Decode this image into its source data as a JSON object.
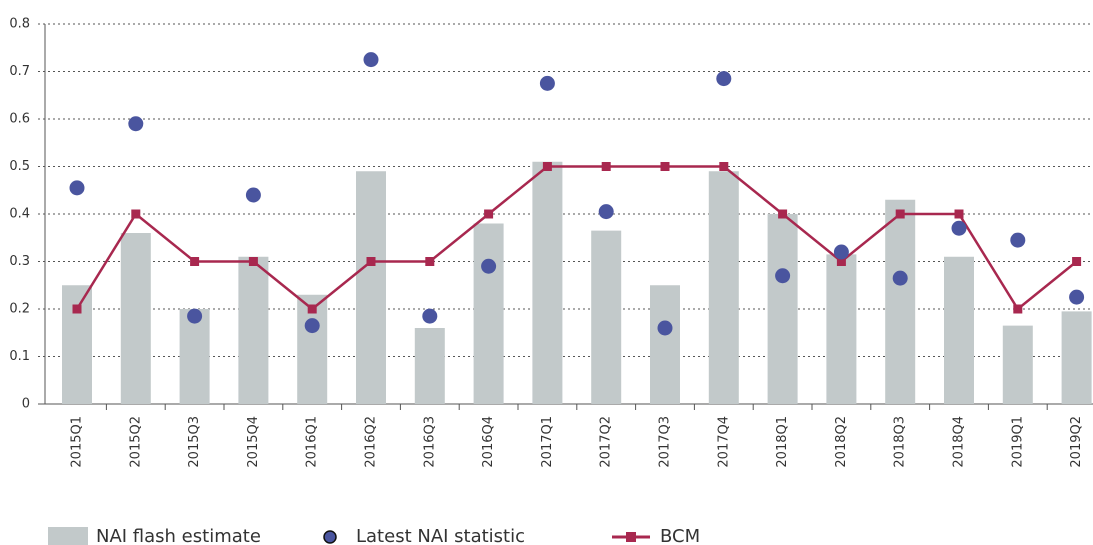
{
  "chart_data": {
    "type": "combo",
    "categories": [
      "2015Q1",
      "2015Q2",
      "2015Q3",
      "2015Q4",
      "2016Q1",
      "2016Q2",
      "2016Q3",
      "2016Q4",
      "2017Q1",
      "2017Q2",
      "2017Q3",
      "2017Q4",
      "2018Q1",
      "2018Q2",
      "2018Q3",
      "2018Q4",
      "2019Q1",
      "2019Q2"
    ],
    "series": [
      {
        "name": "NAI flash estimate",
        "type": "bar",
        "color": "#c2c9ca",
        "values": [
          0.25,
          0.36,
          0.2,
          0.31,
          0.23,
          0.49,
          0.16,
          0.38,
          0.51,
          0.365,
          0.25,
          0.49,
          0.4,
          0.315,
          0.43,
          0.31,
          0.165,
          0.195
        ]
      },
      {
        "name": "Latest NAI statistic",
        "type": "scatter",
        "color": "#4a559f",
        "values": [
          0.455,
          0.59,
          0.185,
          0.44,
          0.165,
          0.725,
          0.185,
          0.29,
          0.675,
          0.405,
          0.16,
          0.685,
          0.27,
          0.32,
          0.265,
          0.37,
          0.345,
          0.225
        ]
      },
      {
        "name": "BCM",
        "type": "line",
        "color": "#a8284f",
        "values": [
          0.2,
          0.4,
          0.3,
          0.3,
          0.2,
          0.3,
          0.3,
          0.4,
          0.5,
          0.5,
          0.5,
          0.5,
          0.4,
          0.3,
          0.4,
          0.4,
          0.2,
          0.3
        ]
      }
    ],
    "ylim": [
      0,
      0.8
    ],
    "yticks": [
      0,
      0.1,
      0.2,
      0.3,
      0.4,
      0.5,
      0.6,
      0.7,
      0.8
    ],
    "grid": true,
    "legend": "bottom"
  }
}
